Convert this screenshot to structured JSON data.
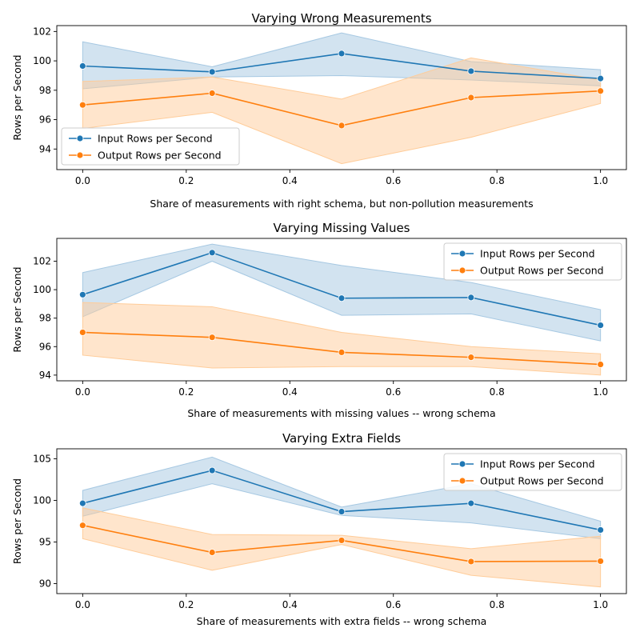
{
  "figure": {
    "background": "#ffffff"
  },
  "colors": {
    "input": "#1f77b4",
    "input_band": "#a6c8e2",
    "output": "#ff7f0e",
    "output_band": "#ffcc99"
  },
  "chart_data": [
    {
      "type": "line",
      "title": "Varying Wrong Measurements",
      "xlabel": "Share of measurements with right schema, but non-pollution measurements",
      "ylabel": "Rows per Second",
      "x": [
        0.0,
        0.25,
        0.5,
        0.75,
        1.0
      ],
      "xlim": [
        -0.05,
        1.05
      ],
      "ylim": [
        92.6,
        102.4
      ],
      "xticks": [
        0.0,
        0.2,
        0.4,
        0.6,
        0.8,
        1.0
      ],
      "xtick_labels": [
        "0.0",
        "0.2",
        "0.4",
        "0.6",
        "0.8",
        "1.0"
      ],
      "yticks": [
        94,
        96,
        98,
        100,
        102
      ],
      "ytick_labels": [
        "94",
        "96",
        "98",
        "100",
        "102"
      ],
      "legend_position": "lower-left",
      "series": [
        {
          "name": "Input Rows per Second",
          "color_key": "input",
          "values": [
            99.65,
            99.25,
            100.5,
            99.3,
            98.8
          ],
          "lower": [
            98.1,
            98.9,
            99.0,
            98.7,
            98.3
          ],
          "upper": [
            101.3,
            99.6,
            101.9,
            99.95,
            99.4
          ]
        },
        {
          "name": "Output Rows per Second",
          "color_key": "output",
          "values": [
            97.0,
            97.8,
            95.6,
            97.5,
            97.95
          ],
          "lower": [
            95.4,
            96.5,
            93.0,
            94.8,
            97.1
          ],
          "upper": [
            98.6,
            98.9,
            97.4,
            100.2,
            98.7
          ]
        }
      ]
    },
    {
      "type": "line",
      "title": "Varying Missing Values",
      "xlabel": "Share of measurements with missing values -- wrong schema",
      "ylabel": "Rows per Second",
      "x": [
        0.0,
        0.25,
        0.5,
        0.75,
        1.0
      ],
      "xlim": [
        -0.05,
        1.05
      ],
      "ylim": [
        93.6,
        103.6
      ],
      "xticks": [
        0.0,
        0.2,
        0.4,
        0.6,
        0.8,
        1.0
      ],
      "xtick_labels": [
        "0.0",
        "0.2",
        "0.4",
        "0.6",
        "0.8",
        "1.0"
      ],
      "yticks": [
        94,
        96,
        98,
        100,
        102
      ],
      "ytick_labels": [
        "94",
        "96",
        "98",
        "100",
        "102"
      ],
      "legend_position": "upper-right",
      "series": [
        {
          "name": "Input Rows per Second",
          "color_key": "input",
          "values": [
            99.65,
            102.6,
            99.4,
            99.45,
            97.5
          ],
          "lower": [
            98.1,
            102.0,
            98.2,
            98.3,
            96.4
          ],
          "upper": [
            101.2,
            103.2,
            101.7,
            100.5,
            98.6
          ]
        },
        {
          "name": "Output Rows per Second",
          "color_key": "output",
          "values": [
            97.0,
            96.65,
            95.6,
            95.25,
            94.75
          ],
          "lower": [
            95.4,
            94.5,
            94.6,
            94.6,
            94.0
          ],
          "upper": [
            99.1,
            98.8,
            97.0,
            96.0,
            95.5
          ]
        }
      ]
    },
    {
      "type": "line",
      "title": "Varying Extra Fields",
      "xlabel": "Share of measurements with extra fields -- wrong schema",
      "ylabel": "Rows per Second",
      "x": [
        0.0,
        0.25,
        0.5,
        0.75,
        1.0
      ],
      "xlim": [
        -0.05,
        1.05
      ],
      "ylim": [
        88.8,
        106.2
      ],
      "xticks": [
        0.0,
        0.2,
        0.4,
        0.6,
        0.8,
        1.0
      ],
      "xtick_labels": [
        "0.0",
        "0.2",
        "0.4",
        "0.6",
        "0.8",
        "1.0"
      ],
      "yticks": [
        90,
        95,
        100,
        105
      ],
      "ytick_labels": [
        "90",
        "95",
        "100",
        "105"
      ],
      "legend_position": "upper-right",
      "series": [
        {
          "name": "Input Rows per Second",
          "color_key": "input",
          "values": [
            99.65,
            103.6,
            98.65,
            99.65,
            96.45
          ],
          "lower": [
            98.1,
            102.0,
            98.2,
            97.3,
            95.4
          ],
          "upper": [
            101.2,
            105.2,
            99.2,
            102.0,
            97.5
          ]
        },
        {
          "name": "Output Rows per Second",
          "color_key": "output",
          "values": [
            97.0,
            93.75,
            95.2,
            92.65,
            92.7
          ],
          "lower": [
            95.4,
            91.6,
            94.7,
            91.0,
            89.6
          ],
          "upper": [
            99.1,
            95.9,
            95.8,
            94.2,
            95.7
          ]
        }
      ]
    }
  ]
}
